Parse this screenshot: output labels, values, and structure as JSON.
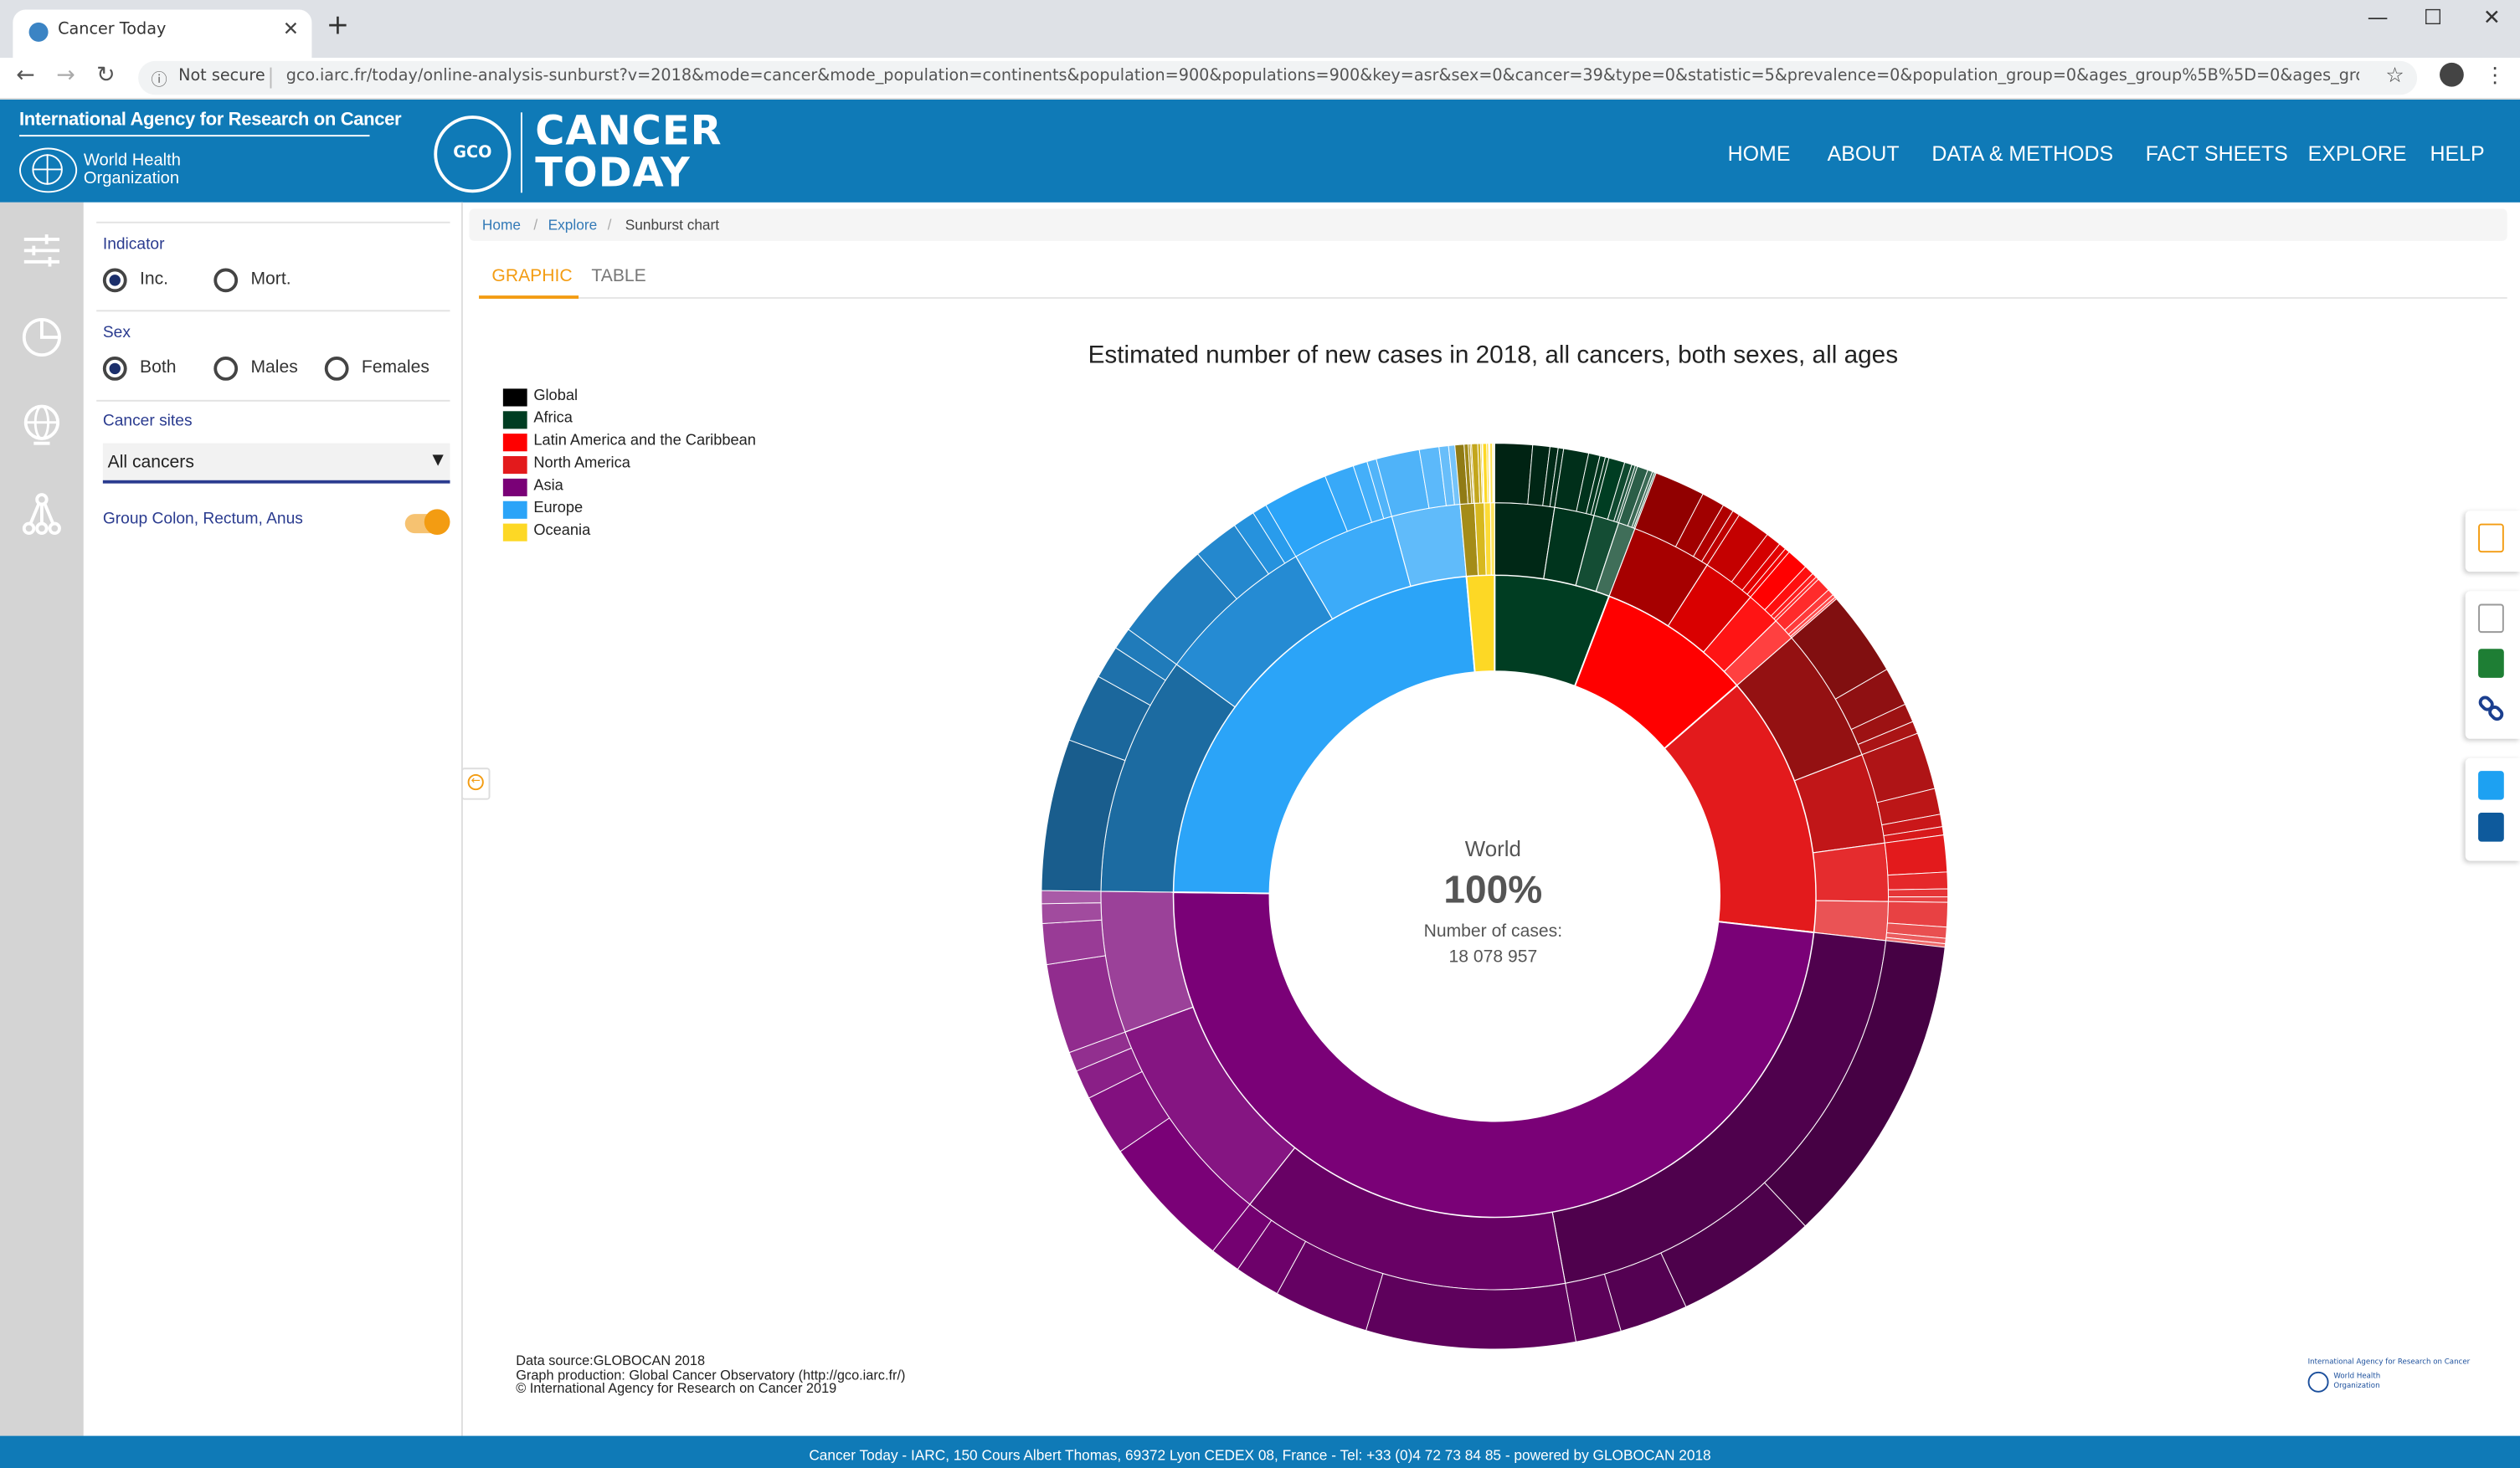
{
  "browser": {
    "tab_title": "Cancer Today",
    "security_label": "Not secure",
    "url": "gco.iarc.fr/today/online-analysis-sunburst?v=2018&mode=cancer&mode_population=continents&population=900&populations=900&key=asr&sex=0&cancer=39&type=0&statistic=5&prevalence=0&population_group=0&ages_group%5B%5D=0&ages_group%5B..."
  },
  "header": {
    "iarc": "International Agency for Research on Cancer",
    "who_line1": "World Health",
    "who_line2": "Organization",
    "gco_mark": "GCO",
    "brand_line1": "CANCER",
    "brand_line2": "TODAY",
    "nav": [
      "HOME",
      "ABOUT",
      "DATA & METHODS",
      "FACT SHEETS",
      "EXPLORE",
      "HELP"
    ]
  },
  "panel": {
    "indicator_label": "Indicator",
    "indicator_options": [
      "Inc.",
      "Mort."
    ],
    "indicator_selected": "Inc.",
    "sex_label": "Sex",
    "sex_options": [
      "Both",
      "Males",
      "Females"
    ],
    "sex_selected": "Both",
    "sites_label": "Cancer sites",
    "sites_value": "All cancers",
    "group_label": "Group Colon, Rectum, Anus",
    "group_enabled": true
  },
  "breadcrumb": [
    "Home",
    "Explore",
    "Sunburst chart"
  ],
  "tabs": [
    "GRAPHIC",
    "TABLE"
  ],
  "active_tab": "GRAPHIC",
  "chart_data": {
    "type": "sunburst",
    "title": "Estimated number of new cases in 2018, all cancers, both sexes, all ages",
    "center": {
      "name": "World",
      "percent": "100%",
      "count_label": "Number of cases:",
      "count": "18 078 957"
    },
    "legend": [
      {
        "name": "Global",
        "color": "#000000"
      },
      {
        "name": "Africa",
        "color": "#003d22"
      },
      {
        "name": "Latin America and the Caribbean",
        "color": "#ff0000"
      },
      {
        "name": "North America",
        "color": "#e31a1c"
      },
      {
        "name": "Asia",
        "color": "#7a0177"
      },
      {
        "name": "Europe",
        "color": "#2ba4f8"
      },
      {
        "name": "Oceania",
        "color": "#fdd825"
      }
    ],
    "inner_ring": [
      {
        "region": "Africa",
        "value": 5.8,
        "color": "#003d22"
      },
      {
        "region": "Latin America and the Caribbean",
        "value": 7.8,
        "color": "#ff0000"
      },
      {
        "region": "North America",
        "value": 13.2,
        "color": "#e31a1c"
      },
      {
        "region": "Asia",
        "value": 48.4,
        "color": "#7a0177"
      },
      {
        "region": "Europe",
        "value": 23.4,
        "color": "#2ba4f8"
      },
      {
        "region": "Oceania",
        "value": 1.4,
        "color": "#fdd825"
      }
    ]
  },
  "credits": [
    "Data source:GLOBOCAN 2018",
    "Graph production: Global Cancer Observatory (http://gco.iarc.fr/)",
    "© International Agency for Research on Cancer 2019"
  ],
  "credit_logo": {
    "line1": "International Agency for Research on Cancer",
    "line2": "World Health",
    "line3": "Organization"
  },
  "footer": "Cancer Today - IARC, 150 Cours Albert Thomas, 69372 Lyon CEDEX 08, France - Tel: +33 (0)4 72 73 84 85 - powered by GLOBOCAN 2018"
}
